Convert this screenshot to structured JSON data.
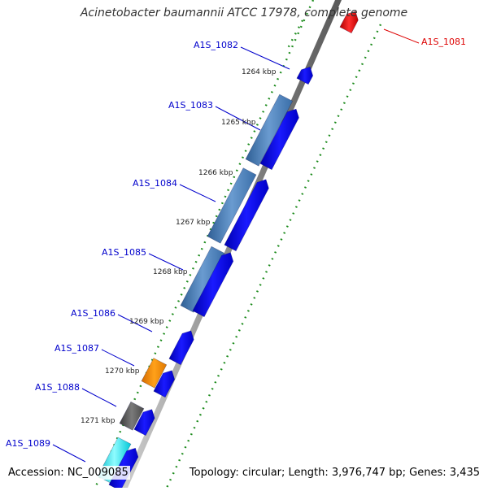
{
  "title": "Acinetobacter baumannii ATCC 17978, complete genome",
  "footer": {
    "accession": "Accession: NC_009085",
    "summary": "Topology: circular; Length: 3,976,747 bp; Genes: 3,435"
  },
  "colors": {
    "forward": "#0a0af0",
    "steel": "#4f81b8",
    "orange": "#ff8c00",
    "gray": "#555555",
    "cyan": "#00e5ee",
    "red": "#e00000",
    "gene_label": "#0000cc",
    "highlight_label": "#dd0000",
    "tick": "#1a8a1a",
    "backbone": "#888888"
  },
  "genes": [
    {
      "label": "A1S_1081",
      "color": "red",
      "highlight": true
    },
    {
      "label": "A1S_1082",
      "color": "forward"
    },
    {
      "label": "A1S_1083",
      "color": "steel"
    },
    {
      "label": "A1S_1084",
      "color": "steel"
    },
    {
      "label": "A1S_1085",
      "color": "steel"
    },
    {
      "label": "A1S_1086",
      "color": "forward"
    },
    {
      "label": "A1S_1087",
      "color": "orange"
    },
    {
      "label": "A1S_1088",
      "color": "gray"
    },
    {
      "label": "A1S_1089",
      "color": "cyan"
    }
  ],
  "ticks": [
    "1264 kbp",
    "1265 kbp",
    "1266 kbp",
    "1267 kbp",
    "1268 kbp",
    "1269 kbp",
    "1270 kbp",
    "1271 kbp"
  ]
}
